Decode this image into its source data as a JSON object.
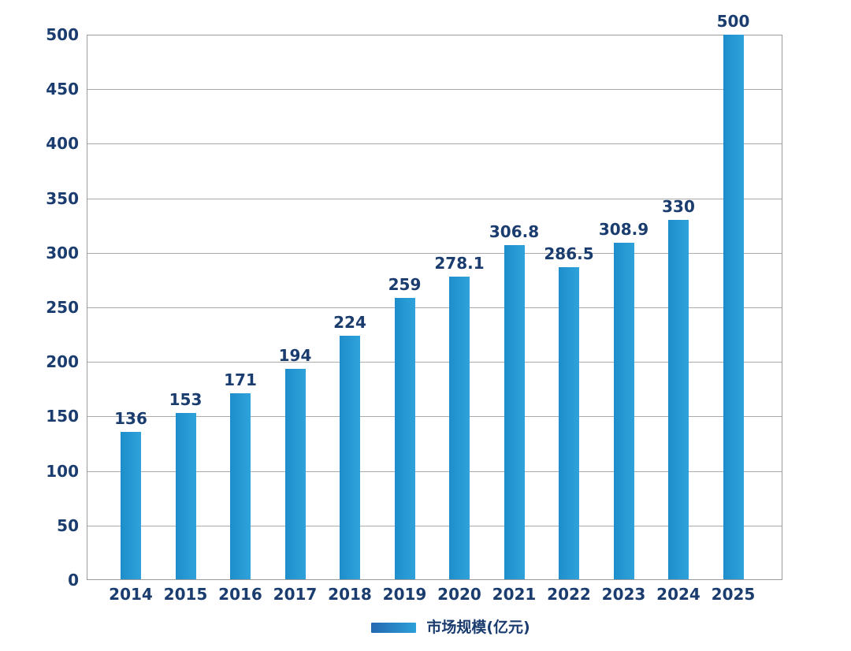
{
  "chart_data": {
    "type": "bar",
    "title": "",
    "xlabel": "",
    "ylabel": "",
    "categories": [
      "2014",
      "2015",
      "2016",
      "2017",
      "2018",
      "2019",
      "2020",
      "2021",
      "2022",
      "2023",
      "2024",
      "2025"
    ],
    "values": [
      136,
      153,
      171,
      194,
      224,
      259,
      278.1,
      306.8,
      286.5,
      308.9,
      330,
      500
    ],
    "value_labels": [
      "136",
      "153",
      "171",
      "194",
      "224",
      "259",
      "278.1",
      "306.8",
      "286.5",
      "308.9",
      "330",
      "500"
    ],
    "ylim": [
      0,
      500
    ],
    "ytick_step": 50,
    "yticks": [
      0,
      50,
      100,
      150,
      200,
      250,
      300,
      350,
      400,
      450,
      500
    ],
    "grid": true,
    "legend": {
      "label": "市场规模(亿元)",
      "position": "bottom"
    },
    "colors": {
      "bar_gradient_left": "#1d8ecb",
      "bar_gradient_right": "#2fa2db",
      "label_text": "#1a3c6e",
      "grid_line": "#aaaaaa",
      "axis_border": "#9b9b9b",
      "background": "#ffffff",
      "legend_swatch_start": "#2468b2",
      "legend_swatch_end": "#2da0d8"
    }
  }
}
